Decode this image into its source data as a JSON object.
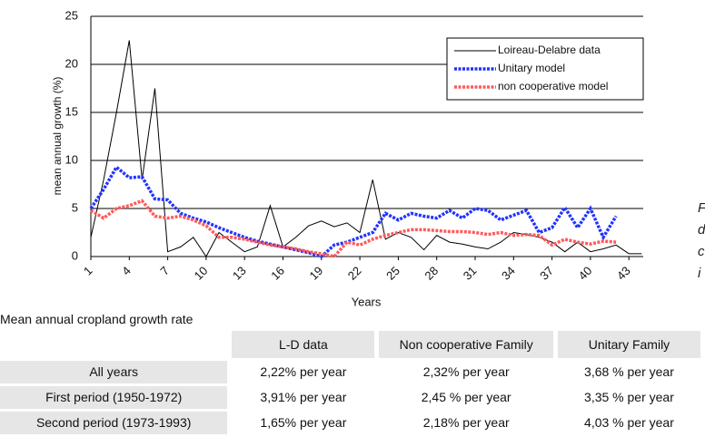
{
  "chart_data": {
    "type": "line",
    "ylabel": "mean annual growth (%)",
    "xlabel": "Years",
    "categories": [
      "1",
      null,
      null,
      "4",
      null,
      null,
      "7",
      null,
      null,
      "10",
      null,
      null,
      "13",
      null,
      null,
      "16",
      null,
      null,
      "19",
      null,
      null,
      "22",
      null,
      null,
      "25",
      null,
      null,
      "28",
      null,
      null,
      "31",
      null,
      null,
      "34",
      null,
      null,
      "37",
      null,
      null,
      "40",
      null,
      null,
      "43",
      null
    ],
    "ylim": [
      0,
      25
    ],
    "yticks": [
      0,
      5,
      10,
      15,
      20,
      25
    ],
    "grid": true,
    "legend": "upper right",
    "series": [
      {
        "name": "Loireau-Delabre data",
        "color": "#000000",
        "values": [
          2,
          8,
          15,
          22.5,
          8,
          17.5,
          0.5,
          1,
          2,
          0,
          2.5,
          1.5,
          0.5,
          1,
          5.3,
          1,
          2,
          3.2,
          3.7,
          3.1,
          3.5,
          2.5,
          8,
          1.8,
          2.5,
          2,
          0.7,
          2.2,
          1.5,
          1.3,
          1,
          0.8,
          1.5,
          2.5,
          2.3,
          2,
          1.5,
          0.5,
          1.5,
          0.5,
          0.8,
          1.2,
          0.3,
          0.3
        ]
      },
      {
        "name": "Unitary model",
        "color": "#2233ff",
        "values": [
          5,
          7,
          9.3,
          8.2,
          8.3,
          6,
          5.9,
          4.5,
          4,
          3.6,
          3,
          2.5,
          2,
          1.6,
          1.3,
          1,
          0.7,
          0.4,
          0,
          1.2,
          1.5,
          2,
          2.5,
          4.5,
          3.8,
          4.5,
          4.2,
          4,
          4.8,
          4,
          5,
          4.8,
          3.8,
          4.3,
          4.8,
          2.5,
          3,
          5.1,
          3,
          5,
          2,
          4.2,
          null,
          null
        ]
      },
      {
        "name": "non cooperative model",
        "color": "#ff5a5a",
        "values": [
          4.8,
          4,
          5,
          5.3,
          5.8,
          4.2,
          4,
          4.2,
          3.8,
          3.2,
          2,
          2,
          1.8,
          1.5,
          1.2,
          1,
          0.8,
          0.5,
          0.3,
          0,
          1.5,
          1.2,
          1.8,
          2.2,
          2.5,
          2.8,
          2.8,
          2.7,
          2.6,
          2.6,
          2.5,
          2.3,
          2.5,
          2.2,
          2.3,
          2.2,
          1.2,
          1.8,
          1.5,
          1.3,
          1.6,
          1.5,
          null,
          null
        ]
      }
    ]
  },
  "table": {
    "title": "Mean annual cropland growth rate",
    "columns": [
      "L-D data",
      "Non cooperative Family",
      "Unitary Family"
    ],
    "rows": [
      [
        "All years",
        "2,22% per year",
        "2,32% per year",
        "3,68 % per year"
      ],
      [
        "First period (1950-1972)",
        "3,91% per year",
        "2,45 % per year",
        "3,35 % per year"
      ],
      [
        "Second period (1973-1993)",
        "1,65% per year",
        "2,18% per year",
        "4,03 % per year"
      ]
    ]
  },
  "side_text": [
    "F",
    "d",
    "c",
    "i"
  ]
}
